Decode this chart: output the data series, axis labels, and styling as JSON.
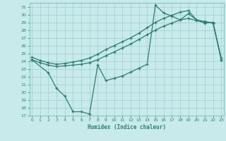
{
  "xlabel": "Humidex (Indice chaleur)",
  "bg_color": "#c8eaea",
  "line_color": "#2e7d70",
  "grid_color": "#9ecece",
  "ylim": [
    17,
    31.5
  ],
  "xlim": [
    -0.3,
    23.3
  ],
  "yticks": [
    17,
    18,
    19,
    20,
    21,
    22,
    23,
    24,
    25,
    26,
    27,
    28,
    29,
    30,
    31
  ],
  "xticks": [
    0,
    1,
    2,
    3,
    4,
    5,
    6,
    7,
    8,
    9,
    10,
    11,
    12,
    13,
    14,
    15,
    16,
    17,
    18,
    19,
    20,
    21,
    22,
    23
  ],
  "line1_x": [
    0,
    1,
    2,
    3,
    4,
    5,
    6,
    7,
    8,
    9,
    10,
    11,
    12,
    13,
    14,
    15,
    16,
    17,
    18,
    19,
    20,
    21,
    22,
    23
  ],
  "line1_y": [
    24.2,
    23.8,
    23.5,
    23.3,
    23.4,
    23.5,
    23.6,
    23.8,
    24.2,
    24.7,
    25.2,
    25.7,
    26.2,
    26.8,
    27.4,
    28.0,
    28.5,
    28.9,
    29.3,
    29.5,
    29.2,
    29.0,
    28.9,
    24.2
  ],
  "line2_x": [
    0,
    1,
    2,
    3,
    4,
    5,
    6,
    7,
    8,
    9,
    10,
    11,
    12,
    13,
    14,
    15,
    16,
    17,
    18,
    19,
    20,
    21,
    22,
    23
  ],
  "line2_y": [
    24.5,
    24.1,
    23.8,
    23.6,
    23.7,
    23.9,
    24.1,
    24.4,
    24.9,
    25.5,
    26.0,
    26.5,
    27.0,
    27.6,
    28.3,
    29.0,
    29.5,
    29.9,
    30.3,
    30.5,
    29.3,
    29.1,
    28.9,
    24.4
  ],
  "line3_x": [
    0,
    2,
    3,
    4,
    5,
    6,
    7,
    8,
    9,
    10,
    11,
    12,
    13,
    14,
    15,
    16,
    17,
    18,
    19,
    20,
    21,
    22,
    23
  ],
  "line3_y": [
    24.2,
    22.5,
    20.5,
    19.5,
    17.5,
    17.5,
    17.2,
    23.5,
    21.5,
    21.8,
    22.1,
    22.6,
    23.1,
    23.6,
    31.2,
    30.2,
    29.8,
    29.3,
    30.1,
    29.3,
    28.9,
    29.0,
    24.2
  ]
}
